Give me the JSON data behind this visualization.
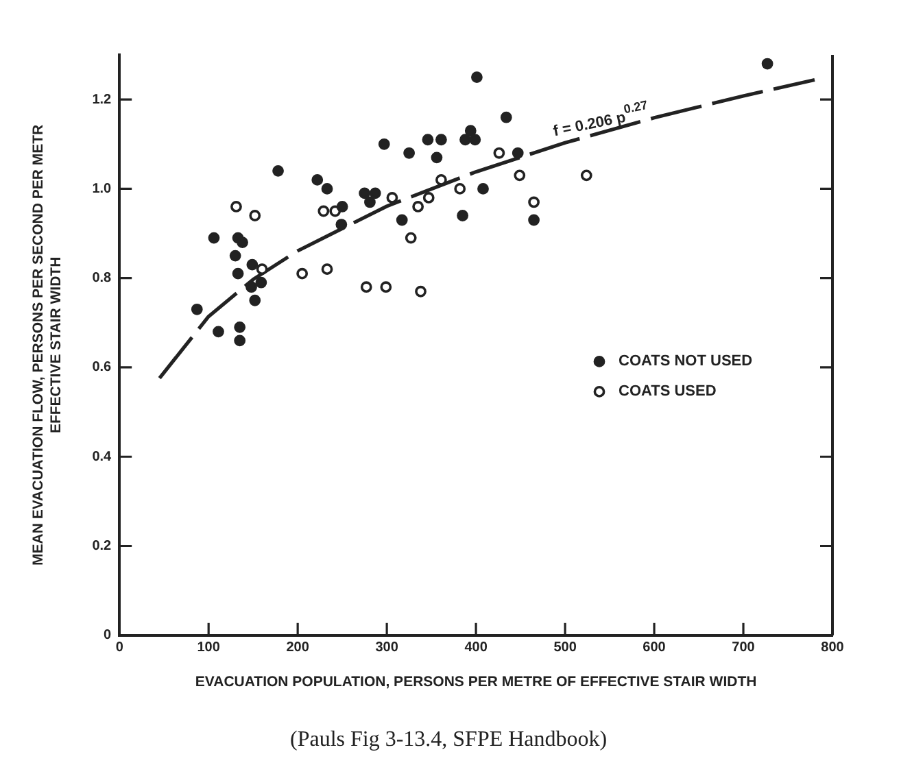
{
  "chart_data": {
    "type": "scatter",
    "xlabel": "EVACUATION POPULATION, PERSONS PER METRE OF EFFECTIVE STAIR WIDTH",
    "ylabel": "MEAN EVACUATION FLOW, PERSONS PER SECOND PER METR\nEFFECTIVE STAIR WIDTH",
    "xlim": [
      0,
      800
    ],
    "xticks": [
      0,
      100,
      200,
      300,
      400,
      500,
      600,
      700,
      800
    ],
    "ylim": [
      0,
      1.3
    ],
    "yticks": [
      0,
      0.2,
      0.4,
      0.6,
      0.8,
      {
        "value": 1,
        "label": "1.0"
      },
      1.2
    ],
    "grid": false,
    "legend": "right",
    "series": [
      {
        "name": "COATS NOT USED",
        "color": "#222222",
        "marker": "circle",
        "x": [
          401,
          434,
          297,
          325,
          346,
          361,
          356,
          394,
          388,
          399,
          447,
          178,
          222,
          233,
          275,
          287,
          281,
          250,
          249,
          317,
          408,
          385,
          465,
          106,
          133,
          138,
          130,
          149,
          133,
          148,
          159,
          152,
          87,
          111,
          135,
          135,
          727
        ],
        "values": [
          1.25,
          1.16,
          1.1,
          1.08,
          1.11,
          1.11,
          1.07,
          1.13,
          1.11,
          1.11,
          1.08,
          1.04,
          1.02,
          1.0,
          0.99,
          0.99,
          0.97,
          0.96,
          0.92,
          0.93,
          1.0,
          0.94,
          0.93,
          0.89,
          0.89,
          0.88,
          0.85,
          0.83,
          0.81,
          0.78,
          0.79,
          0.75,
          0.73,
          0.68,
          0.69,
          0.66,
          1.28
        ]
      },
      {
        "name": "COATS USED",
        "color": "#222222",
        "marker": "circle-open",
        "x": [
          131,
          152,
          160,
          205,
          233,
          277,
          299,
          338,
          229,
          242,
          306,
          361,
          426,
          449,
          465,
          382,
          347,
          335,
          327,
          524
        ],
        "values": [
          0.96,
          0.94,
          0.82,
          0.81,
          0.82,
          0.78,
          0.78,
          0.77,
          0.95,
          0.95,
          0.98,
          1.02,
          1.08,
          1.03,
          0.97,
          1.0,
          0.98,
          0.96,
          0.89,
          1.03
        ]
      },
      {
        "type": "line",
        "color": "#222222",
        "line_style": "dashed",
        "marker": "none",
        "x": [
          45,
          100,
          150,
          200,
          300,
          400,
          500,
          600,
          700,
          780
        ],
        "values": [
          0.576,
          0.714,
          0.797,
          0.861,
          0.961,
          1.038,
          1.103,
          1.159,
          1.208,
          1.244
        ]
      }
    ],
    "annotations": [
      "f = 0.206 p$^{0.27}$",
      "(Pauls Fig 3-13.4, SFPE Handbook)"
    ]
  }
}
